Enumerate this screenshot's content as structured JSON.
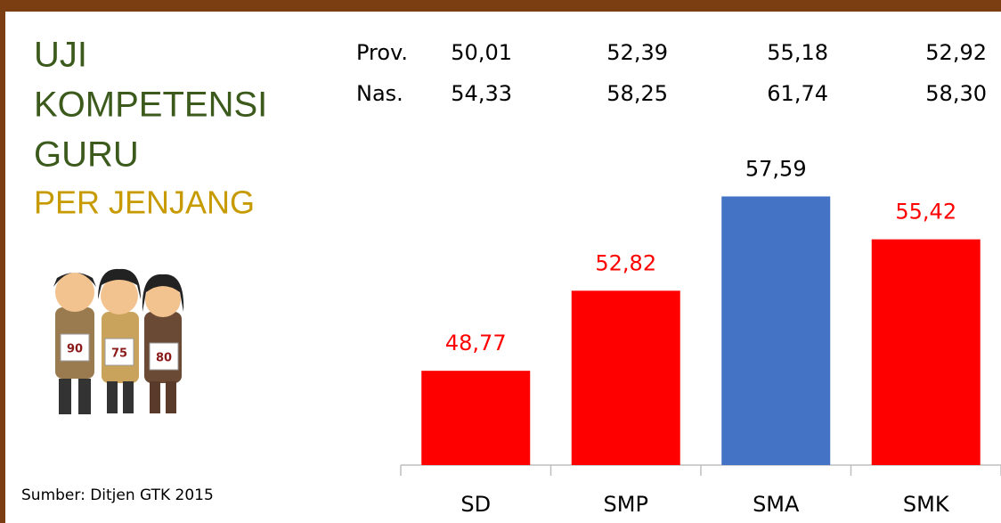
{
  "title_lines": [
    "UJI",
    "KOMPETENSI",
    "GURU"
  ],
  "subtitle": "PER JENJANG",
  "source": "Sumber: Ditjen GTK 2015",
  "illustration": {
    "badges": [
      "90",
      "75",
      "80"
    ]
  },
  "summary": {
    "rows": [
      {
        "label": "Prov.",
        "cells": [
          "50,01",
          "52,39",
          "55,18",
          "52,92"
        ]
      },
      {
        "label": "Nas.",
        "cells": [
          "54,33",
          "58,25",
          "61,74",
          "58,30"
        ]
      }
    ]
  },
  "chart_data": {
    "type": "bar",
    "categories": [
      "SD",
      "SMP",
      "SMA",
      "SMK"
    ],
    "values": [
      48.77,
      52.82,
      57.59,
      55.42
    ],
    "value_labels": [
      "48,77",
      "52,82",
      "57,59",
      "55,42"
    ],
    "colors": [
      "#ff0000",
      "#ff0000",
      "#4472c4",
      "#ff0000"
    ],
    "label_colors": [
      "#ff0000",
      "#ff0000",
      "#000000",
      "#ff0000"
    ],
    "ylim": [
      44,
      60
    ]
  }
}
